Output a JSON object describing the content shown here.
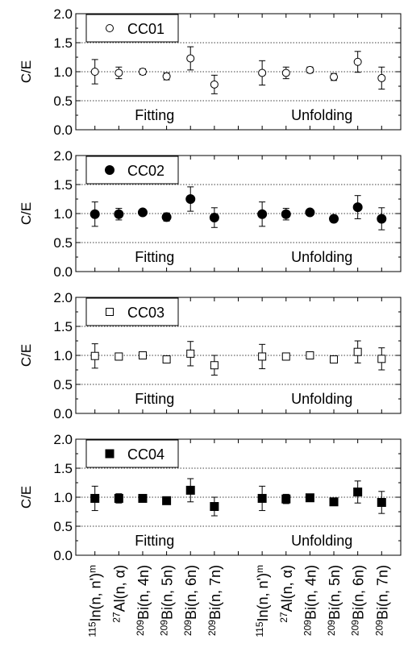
{
  "chart_data": {
    "type": "scatter",
    "ylabel": "C/E",
    "ylim": [
      0,
      2.0
    ],
    "yticks": [
      "0.0",
      "0.5",
      "1.0",
      "1.5",
      "2.0"
    ],
    "reference_lines": [
      0.5,
      1.0,
      1.5
    ],
    "group_labels": [
      "Fitting",
      "Unfolding"
    ],
    "categories": [
      {
        "sup": "115",
        "main": "In(n, n')",
        "post": "m"
      },
      {
        "sup": "27",
        "main": "Al(n, α)",
        "post": ""
      },
      {
        "sup": "209",
        "main": "Bi(n, 4n)",
        "post": ""
      },
      {
        "sup": "209",
        "main": "Bi(n, 5n)",
        "post": ""
      },
      {
        "sup": "209",
        "main": "Bi(n, 6n)",
        "post": ""
      },
      {
        "sup": "209",
        "main": "Bi(n, 7n)",
        "post": ""
      },
      {
        "sup": "115",
        "main": "In(n, n')",
        "post": "m"
      },
      {
        "sup": "27",
        "main": "Al(n, α)",
        "post": ""
      },
      {
        "sup": "209",
        "main": "Bi(n, 4n)",
        "post": ""
      },
      {
        "sup": "209",
        "main": "Bi(n, 5n)",
        "post": ""
      },
      {
        "sup": "209",
        "main": "Bi(n, 6n)",
        "post": ""
      },
      {
        "sup": "209",
        "main": "Bi(n, 7n)",
        "post": ""
      }
    ],
    "panels": [
      {
        "name": "CC01",
        "marker": "open-circle",
        "values": [
          1.0,
          0.98,
          1.0,
          0.92,
          1.23,
          0.78,
          0.98,
          0.98,
          1.03,
          0.91,
          1.17,
          0.89
        ],
        "errors": [
          0.21,
          0.1,
          0.05,
          0.06,
          0.2,
          0.16,
          0.21,
          0.1,
          0.05,
          0.06,
          0.18,
          0.19
        ]
      },
      {
        "name": "CC02",
        "marker": "filled-circle",
        "values": [
          0.99,
          0.99,
          1.02,
          0.94,
          1.25,
          0.93,
          0.99,
          0.99,
          1.02,
          0.91,
          1.11,
          0.91
        ],
        "errors": [
          0.21,
          0.1,
          0.05,
          0.07,
          0.21,
          0.17,
          0.21,
          0.1,
          0.05,
          0.06,
          0.2,
          0.19
        ]
      },
      {
        "name": "CC03",
        "marker": "open-square",
        "values": [
          0.99,
          0.98,
          1.0,
          0.93,
          1.03,
          0.83,
          0.98,
          0.98,
          1.0,
          0.93,
          1.06,
          0.94
        ],
        "errors": [
          0.21,
          0.06,
          0.02,
          0.05,
          0.21,
          0.17,
          0.21,
          0.06,
          0.02,
          0.03,
          0.19,
          0.19
        ]
      },
      {
        "name": "CC04",
        "marker": "filled-square",
        "values": [
          0.98,
          0.98,
          0.98,
          0.94,
          1.12,
          0.84,
          0.98,
          0.97,
          0.99,
          0.92,
          1.09,
          0.91
        ],
        "errors": [
          0.21,
          0.08,
          0.02,
          0.05,
          0.2,
          0.16,
          0.21,
          0.08,
          0.02,
          0.04,
          0.19,
          0.19
        ]
      }
    ]
  }
}
